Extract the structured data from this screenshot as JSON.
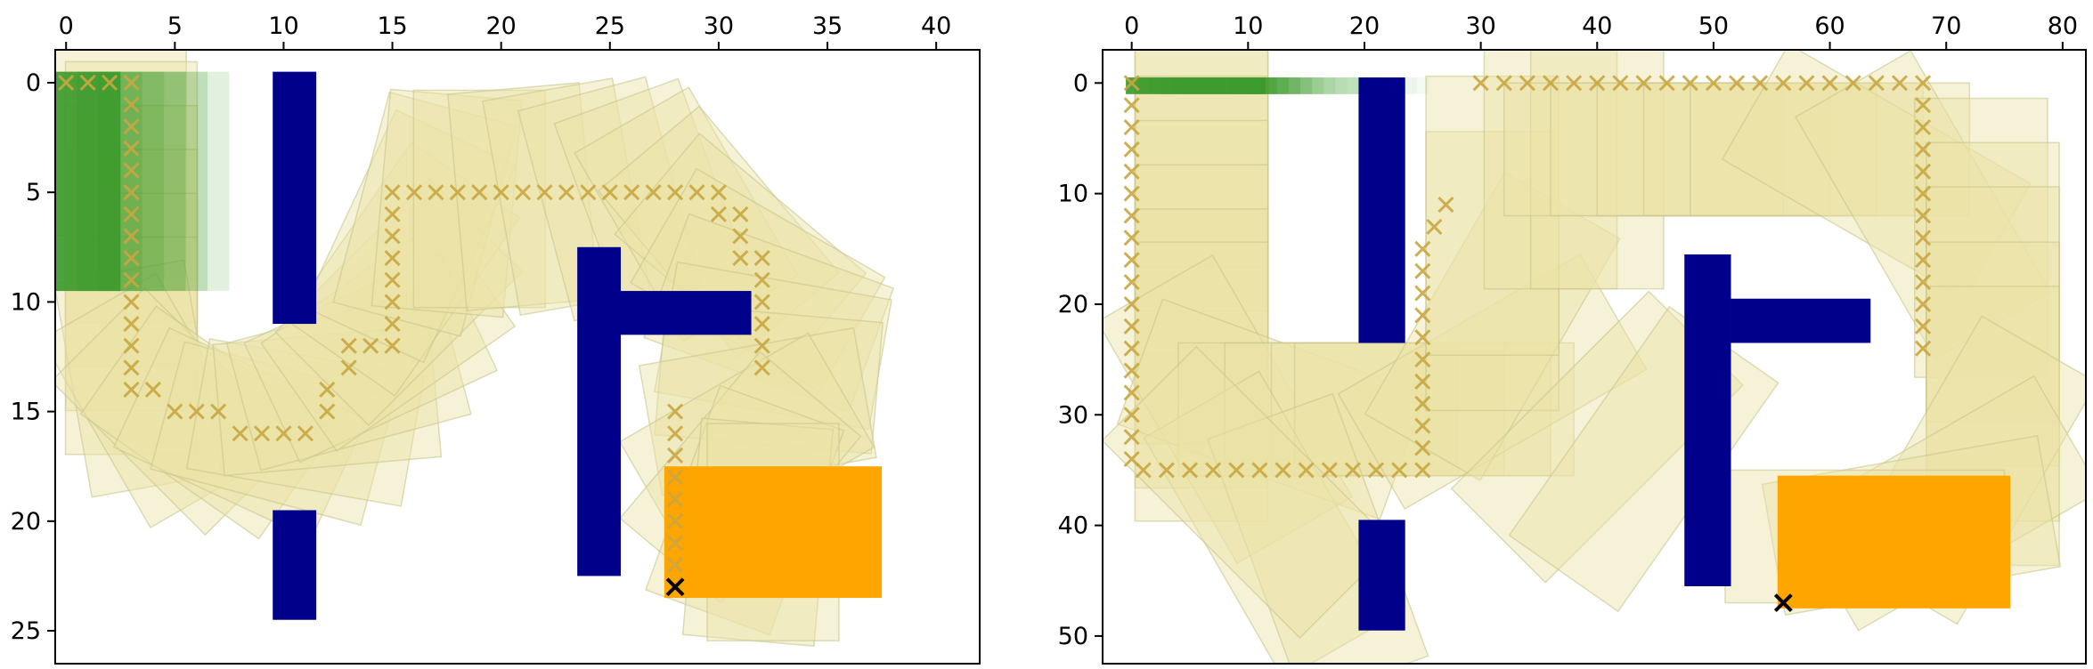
{
  "colors": {
    "obstacle": "#00008b",
    "start": "#3c9a2c",
    "goal": "#ffa500",
    "trail_fill": "#ebe3a6",
    "trail_stroke": "#c8c68c",
    "path_marker": "#c9a640",
    "goal_marker": "#000000"
  },
  "chart_data": [
    {
      "type": "scatter",
      "title": "",
      "xlabel": "",
      "ylabel": "",
      "xlim": [
        -0.5,
        42.0
      ],
      "ylim": [
        26.5,
        -1.5
      ],
      "xticks": [
        0,
        5,
        10,
        15,
        20,
        25,
        30,
        35,
        40
      ],
      "yticks": [
        0,
        5,
        10,
        15,
        20,
        25
      ],
      "x_axis_position": "top",
      "y_axis_inverted": true,
      "grid": false,
      "obstacles": [
        {
          "x0": 9.5,
          "y0": -0.5,
          "x1": 11.5,
          "y1": 11.0
        },
        {
          "x0": 9.5,
          "y0": 19.5,
          "x1": 11.5,
          "y1": 24.5
        },
        {
          "x0": 23.5,
          "y0": 7.5,
          "x1": 25.5,
          "y1": 22.5
        },
        {
          "x0": 25.5,
          "y0": 9.5,
          "x1": 31.5,
          "y1": 11.5
        }
      ],
      "start_region": {
        "x0": -0.5,
        "y0": -0.5,
        "x1": 2.5,
        "y1": 9.5
      },
      "start_trail_offsets": [
        0,
        1,
        2,
        3,
        4,
        5
      ],
      "goal_region": {
        "x0": 27.5,
        "y0": 17.5,
        "x1": 37.5,
        "y1": 23.5
      },
      "goal_marker": {
        "x": 28.0,
        "y": 23.0
      },
      "footprint": {
        "length": 10,
        "width": 6
      },
      "path": [
        [
          0,
          0
        ],
        [
          1,
          0
        ],
        [
          2,
          0
        ],
        [
          3,
          0
        ],
        [
          3,
          1
        ],
        [
          3,
          2
        ],
        [
          3,
          3
        ],
        [
          3,
          4
        ],
        [
          3,
          5
        ],
        [
          3,
          6
        ],
        [
          3,
          7
        ],
        [
          3,
          8
        ],
        [
          3,
          9
        ],
        [
          3,
          10
        ],
        [
          3,
          11
        ],
        [
          3,
          12
        ],
        [
          3,
          13
        ],
        [
          3,
          14
        ],
        [
          4,
          14
        ],
        [
          5,
          15
        ],
        [
          6,
          15
        ],
        [
          7,
          15
        ],
        [
          8,
          16
        ],
        [
          9,
          16
        ],
        [
          10,
          16
        ],
        [
          11,
          16
        ],
        [
          12,
          15
        ],
        [
          12,
          14
        ],
        [
          13,
          13
        ],
        [
          13,
          12
        ],
        [
          14,
          12
        ],
        [
          15,
          12
        ],
        [
          15,
          11
        ],
        [
          15,
          10
        ],
        [
          15,
          9
        ],
        [
          15,
          8
        ],
        [
          15,
          7
        ],
        [
          15,
          6
        ],
        [
          15,
          5
        ],
        [
          16,
          5
        ],
        [
          17,
          5
        ],
        [
          18,
          5
        ],
        [
          19,
          5
        ],
        [
          20,
          5
        ],
        [
          21,
          5
        ],
        [
          22,
          5
        ],
        [
          23,
          5
        ],
        [
          24,
          5
        ],
        [
          25,
          5
        ],
        [
          26,
          5
        ],
        [
          27,
          5
        ],
        [
          28,
          5
        ],
        [
          29,
          5
        ],
        [
          30,
          5
        ],
        [
          30,
          6
        ],
        [
          31,
          6
        ],
        [
          31,
          7
        ],
        [
          31,
          8
        ],
        [
          32,
          8
        ],
        [
          32,
          9
        ],
        [
          32,
          10
        ],
        [
          32,
          11
        ],
        [
          32,
          12
        ],
        [
          32,
          13
        ],
        [
          28,
          15
        ],
        [
          28,
          16
        ],
        [
          28,
          17
        ],
        [
          28,
          18
        ],
        [
          28,
          19
        ],
        [
          28,
          20
        ],
        [
          28,
          21
        ],
        [
          28,
          22
        ]
      ],
      "trail": [
        {
          "x": 2.5,
          "y": 2,
          "a": 90
        },
        {
          "x": 3,
          "y": 4,
          "a": 90
        },
        {
          "x": 3,
          "y": 6,
          "a": 90
        },
        {
          "x": 3,
          "y": 8,
          "a": 90
        },
        {
          "x": 3,
          "y": 10,
          "a": 90
        },
        {
          "x": 3,
          "y": 12,
          "a": 90
        },
        {
          "x": 3.3,
          "y": 13.5,
          "a": 80
        },
        {
          "x": 4,
          "y": 14.5,
          "a": 60
        },
        {
          "x": 5,
          "y": 15,
          "a": 45
        },
        {
          "x": 6.5,
          "y": 15.5,
          "a": 35
        },
        {
          "x": 8,
          "y": 16,
          "a": 25
        },
        {
          "x": 9.5,
          "y": 16,
          "a": 15
        },
        {
          "x": 11,
          "y": 15.5,
          "a": 10
        },
        {
          "x": 12,
          "y": 14.5,
          "a": -5
        },
        {
          "x": 13,
          "y": 13.5,
          "a": -15
        },
        {
          "x": 14,
          "y": 12.5,
          "a": -25
        },
        {
          "x": 14.8,
          "y": 11.5,
          "a": -35
        },
        {
          "x": 15.3,
          "y": 10,
          "a": -45
        },
        {
          "x": 15.5,
          "y": 8.5,
          "a": -55
        },
        {
          "x": 15.8,
          "y": 7,
          "a": -65
        },
        {
          "x": 16.5,
          "y": 6,
          "a": -75
        },
        {
          "x": 17.5,
          "y": 5.5,
          "a": -85
        },
        {
          "x": 19,
          "y": 5.3,
          "a": -90
        },
        {
          "x": 21,
          "y": 5.2,
          "a": -95
        },
        {
          "x": 23,
          "y": 5.2,
          "a": -100
        },
        {
          "x": 25,
          "y": 5.3,
          "a": -105
        },
        {
          "x": 27,
          "y": 5.5,
          "a": -110
        },
        {
          "x": 28.5,
          "y": 6,
          "a": -120
        },
        {
          "x": 30,
          "y": 6.8,
          "a": -130
        },
        {
          "x": 31,
          "y": 7.8,
          "a": -140
        },
        {
          "x": 31.8,
          "y": 9,
          "a": -150
        },
        {
          "x": 32.3,
          "y": 10.5,
          "a": -160
        },
        {
          "x": 32.5,
          "y": 12,
          "a": -170
        },
        {
          "x": 32.3,
          "y": 13.5,
          "a": -175
        },
        {
          "x": 31.8,
          "y": 15,
          "a": 170
        },
        {
          "x": 31.3,
          "y": 16.5,
          "a": 150
        },
        {
          "x": 31,
          "y": 18,
          "a": 130
        },
        {
          "x": 31.2,
          "y": 19.5,
          "a": 110
        },
        {
          "x": 31.8,
          "y": 20.5,
          "a": 95
        },
        {
          "x": 32.5,
          "y": 20.5,
          "a": 90
        }
      ]
    },
    {
      "type": "scatter",
      "title": "",
      "xlabel": "",
      "ylabel": "",
      "xlim": [
        -2.5,
        82.0
      ],
      "ylim": [
        52.5,
        -3.0
      ],
      "xticks": [
        0,
        10,
        20,
        30,
        40,
        50,
        60,
        70,
        80
      ],
      "yticks": [
        0,
        10,
        20,
        30,
        40,
        50
      ],
      "x_axis_position": "top",
      "y_axis_inverted": true,
      "grid": false,
      "obstacles": [
        {
          "x0": 19.5,
          "y0": -0.5,
          "x1": 23.5,
          "y1": 23.5
        },
        {
          "x0": 19.5,
          "y0": 39.5,
          "x1": 23.5,
          "y1": 49.5
        },
        {
          "x0": 47.5,
          "y0": 15.5,
          "x1": 51.5,
          "y1": 45.5
        },
        {
          "x0": 51.5,
          "y0": 19.5,
          "x1": 63.5,
          "y1": 23.5
        }
      ],
      "start_region": {
        "x0": -0.5,
        "y0": -0.5,
        "x1": 11.5,
        "y1": 1.0
      },
      "start_trail_offsets": [
        0,
        1,
        2,
        3,
        4,
        5,
        6,
        7,
        8,
        9,
        10,
        11,
        12,
        13,
        14
      ],
      "goal_region": {
        "x0": 55.5,
        "y0": 35.5,
        "x1": 75.5,
        "y1": 47.5
      },
      "goal_marker": {
        "x": 56.0,
        "y": 47.0
      },
      "footprint": {
        "length": 24,
        "width": 12
      },
      "path": [
        [
          0,
          0
        ],
        [
          0,
          2
        ],
        [
          0,
          4
        ],
        [
          0,
          6
        ],
        [
          0,
          8
        ],
        [
          0,
          10
        ],
        [
          0,
          12
        ],
        [
          0,
          14
        ],
        [
          0,
          16
        ],
        [
          0,
          18
        ],
        [
          0,
          20
        ],
        [
          0,
          22
        ],
        [
          0,
          24
        ],
        [
          0,
          26
        ],
        [
          0,
          28
        ],
        [
          0,
          30
        ],
        [
          0,
          32
        ],
        [
          0,
          34
        ],
        [
          1,
          35
        ],
        [
          3,
          35
        ],
        [
          5,
          35
        ],
        [
          7,
          35
        ],
        [
          9,
          35
        ],
        [
          11,
          35
        ],
        [
          13,
          35
        ],
        [
          15,
          35
        ],
        [
          17,
          35
        ],
        [
          19,
          35
        ],
        [
          21,
          35
        ],
        [
          23,
          35
        ],
        [
          25,
          35
        ],
        [
          25,
          33
        ],
        [
          25,
          31
        ],
        [
          25,
          29
        ],
        [
          25,
          27
        ],
        [
          25,
          25
        ],
        [
          25,
          23
        ],
        [
          25,
          21
        ],
        [
          25,
          19
        ],
        [
          25,
          17
        ],
        [
          25,
          15
        ],
        [
          26,
          13
        ],
        [
          27,
          11
        ],
        [
          30,
          0
        ],
        [
          32,
          0
        ],
        [
          34,
          0
        ],
        [
          36,
          0
        ],
        [
          38,
          0
        ],
        [
          40,
          0
        ],
        [
          42,
          0
        ],
        [
          44,
          0
        ],
        [
          46,
          0
        ],
        [
          48,
          0
        ],
        [
          50,
          0
        ],
        [
          52,
          0
        ],
        [
          54,
          0
        ],
        [
          56,
          0
        ],
        [
          58,
          0
        ],
        [
          60,
          0
        ],
        [
          62,
          0
        ],
        [
          64,
          0
        ],
        [
          66,
          0
        ],
        [
          68,
          0
        ],
        [
          68,
          2
        ],
        [
          68,
          4
        ],
        [
          68,
          6
        ],
        [
          68,
          8
        ],
        [
          68,
          10
        ],
        [
          68,
          12
        ],
        [
          68,
          14
        ],
        [
          68,
          16
        ],
        [
          68,
          18
        ],
        [
          68,
          20
        ],
        [
          68,
          22
        ],
        [
          68,
          24
        ]
      ],
      "trail": [
        {
          "x": 6,
          "y": 4,
          "a": 90
        },
        {
          "x": 6,
          "y": 8,
          "a": 90
        },
        {
          "x": 6,
          "y": 12,
          "a": 90
        },
        {
          "x": 6,
          "y": 16,
          "a": 90
        },
        {
          "x": 6,
          "y": 20,
          "a": 90
        },
        {
          "x": 6,
          "y": 24,
          "a": 90
        },
        {
          "x": 6,
          "y": 27,
          "a": 90
        },
        {
          "x": 8,
          "y": 29.5,
          "a": 60
        },
        {
          "x": 12,
          "y": 29.5,
          "a": 20
        },
        {
          "x": 16,
          "y": 29.5,
          "a": 0
        },
        {
          "x": 20,
          "y": 29.5,
          "a": 0
        },
        {
          "x": 24,
          "y": 29.5,
          "a": 0
        },
        {
          "x": 26,
          "y": 29.5,
          "a": 0
        },
        {
          "x": 31,
          "y": 27,
          "a": -30
        },
        {
          "x": 31,
          "y": 22,
          "a": -60
        },
        {
          "x": 31,
          "y": 17,
          "a": -90
        },
        {
          "x": 31,
          "y": 12,
          "a": -90
        },
        {
          "x": 36,
          "y": 6,
          "a": -90
        },
        {
          "x": 40,
          "y": 6,
          "a": -90
        },
        {
          "x": 44,
          "y": 6,
          "a": 0
        },
        {
          "x": 48,
          "y": 6,
          "a": 0
        },
        {
          "x": 52,
          "y": 6,
          "a": 0
        },
        {
          "x": 56,
          "y": 6,
          "a": 0
        },
        {
          "x": 60,
          "y": 6,
          "a": 0
        },
        {
          "x": 64,
          "y": 8,
          "a": 30
        },
        {
          "x": 68,
          "y": 11,
          "a": 60
        },
        {
          "x": 73,
          "y": 14,
          "a": 90
        },
        {
          "x": 74,
          "y": 18,
          "a": 90
        },
        {
          "x": 74,
          "y": 22,
          "a": 90
        },
        {
          "x": 74,
          "y": 27,
          "a": 90
        },
        {
          "x": 74,
          "y": 31,
          "a": 90
        },
        {
          "x": 72,
          "y": 35,
          "a": 120
        },
        {
          "x": 70,
          "y": 38,
          "a": 150
        },
        {
          "x": 67,
          "y": 40,
          "a": 170
        },
        {
          "x": 63,
          "y": 41,
          "a": 180
        },
        {
          "x": 40,
          "y": 32,
          "a": -45
        },
        {
          "x": 44,
          "y": 34,
          "a": -55
        },
        {
          "x": 12,
          "y": 40,
          "a": 60
        },
        {
          "x": 16,
          "y": 42,
          "a": 70
        },
        {
          "x": 10,
          "y": 37,
          "a": 45
        }
      ]
    }
  ]
}
